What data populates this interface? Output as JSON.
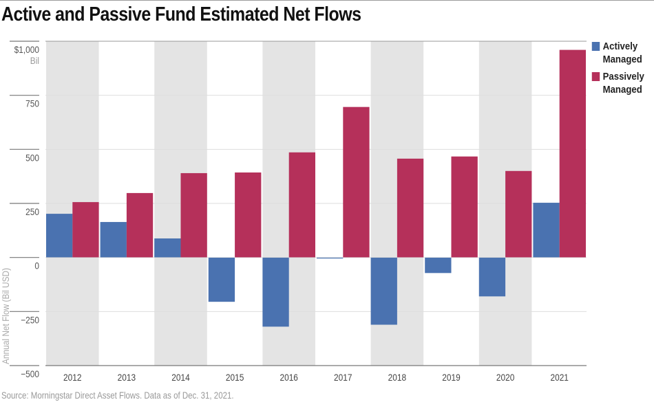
{
  "chart_data": {
    "type": "bar",
    "title": "Active and Passive Fund Estimated Net Flows",
    "xlabel": "",
    "ylabel": "Annual Net Flow (Bil USD)",
    "y_unit_label": "Bil",
    "ylim": [
      -500,
      1000
    ],
    "yticks": [
      {
        "value": 1000,
        "label": "$1,000"
      },
      {
        "value": 750,
        "label": "750"
      },
      {
        "value": 500,
        "label": "500"
      },
      {
        "value": 250,
        "label": "250"
      },
      {
        "value": 0,
        "label": "0"
      },
      {
        "value": -250,
        "label": "−250"
      },
      {
        "value": -500,
        "label": "−500"
      }
    ],
    "categories": [
      "2012",
      "2013",
      "2014",
      "2015",
      "2016",
      "2017",
      "2018",
      "2019",
      "2020",
      "2021"
    ],
    "series": [
      {
        "name": "Actively Managed",
        "color": "#4a72b0",
        "values": [
          202,
          164,
          88,
          -205,
          -320,
          -3,
          -311,
          -72,
          -180,
          253
        ]
      },
      {
        "name": "Passively Managed",
        "color": "#b5305a",
        "values": [
          256,
          298,
          390,
          393,
          486,
          696,
          457,
          467,
          400,
          960
        ]
      }
    ],
    "grid": true,
    "alternating_bands": true,
    "legend_position": "right",
    "source": "Source: Morningstar Direct Asset Flows. Data as of Dec. 31, 2021."
  },
  "legend": [
    {
      "label_line1": "Actively",
      "label_line2": "Managed"
    },
    {
      "label_line1": "Passively",
      "label_line2": "Managed"
    }
  ]
}
